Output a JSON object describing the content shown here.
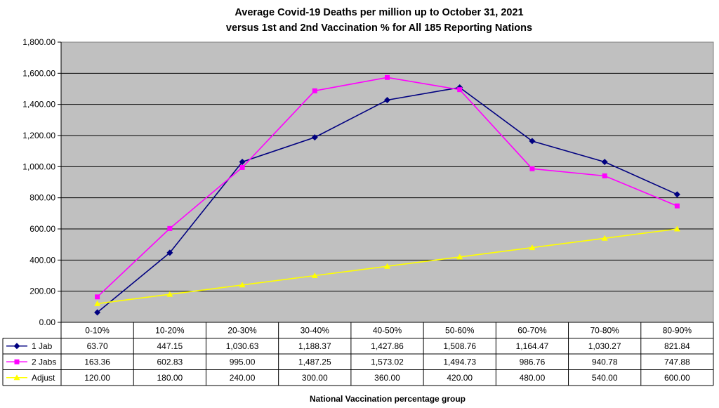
{
  "chart_data": {
    "type": "line",
    "title_lines": [
      "Average Covid-19 Deaths per million up to October 31, 2021",
      "versus 1st and 2nd Vaccination % for All 185 Reporting Nations"
    ],
    "xlabel": "National Vaccination percentage group",
    "ylabel": "",
    "ylim": [
      0,
      1800
    ],
    "y_ticks": [
      0,
      200,
      400,
      600,
      800,
      1000,
      1200,
      1400,
      1600,
      1800
    ],
    "y_tick_labels": [
      "0.00",
      "200.00",
      "400.00",
      "600.00",
      "800.00",
      "1,000.00",
      "1,200.00",
      "1,400.00",
      "1,600.00",
      "1,800.00"
    ],
    "grid": true,
    "legend": "data-table-left",
    "categories": [
      "0-10%",
      "10-20%",
      "20-30%",
      "30-40%",
      "40-50%",
      "50-60%",
      "60-70%",
      "70-80%",
      "80-90%"
    ],
    "series": [
      {
        "name": "1 Jab",
        "color": "#000080",
        "marker": "diamond",
        "values": [
          63.7,
          447.15,
          1030.63,
          1188.37,
          1427.86,
          1508.76,
          1164.47,
          1030.27,
          821.84
        ],
        "labels": [
          "63.70",
          "447.15",
          "1,030.63",
          "1,188.37",
          "1,427.86",
          "1,508.76",
          "1,164.47",
          "1,030.27",
          "821.84"
        ]
      },
      {
        "name": "2 Jabs",
        "color": "#ff00ff",
        "marker": "square",
        "values": [
          163.36,
          602.83,
          995.0,
          1487.25,
          1573.02,
          1494.73,
          986.76,
          940.78,
          747.88
        ],
        "labels": [
          "163.36",
          "602.83",
          "995.00",
          "1,487.25",
          "1,573.02",
          "1,494.73",
          "986.76",
          "940.78",
          "747.88"
        ]
      },
      {
        "name": "Adjust",
        "color": "#ffff00",
        "marker": "triangle",
        "values": [
          120,
          180,
          240,
          300,
          360,
          420,
          480,
          540,
          600
        ],
        "labels": [
          "120.00",
          "180.00",
          "240.00",
          "300.00",
          "360.00",
          "420.00",
          "480.00",
          "540.00",
          "600.00"
        ]
      }
    ],
    "plot_background": "#c0c0c0"
  }
}
